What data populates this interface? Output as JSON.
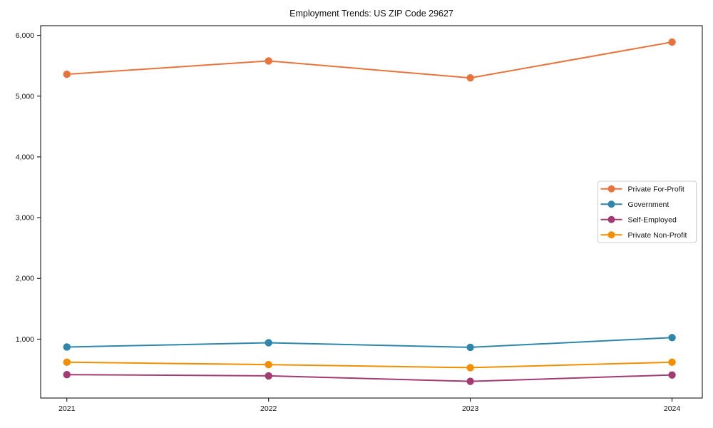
{
  "figure": {
    "background": "#ffffff"
  },
  "chart_data": {
    "type": "line",
    "title": "Employment Trends: US ZIP Code 29627",
    "xlabel": "",
    "ylabel": "",
    "x": [
      2021,
      2022,
      2023,
      2024
    ],
    "x_tick_labels": [
      "2021",
      "2022",
      "2023",
      "2024"
    ],
    "series": [
      {
        "name": "Private For-Profit",
        "color": "#E8743B",
        "values": [
          5360,
          5580,
          5300,
          5890
        ]
      },
      {
        "name": "Government",
        "color": "#2E86AB",
        "values": [
          870,
          940,
          865,
          1025
        ]
      },
      {
        "name": "Self-Employed",
        "color": "#A23B72",
        "values": [
          415,
          395,
          305,
          410
        ]
      },
      {
        "name": "Private Non-Profit",
        "color": "#F18F01",
        "values": [
          620,
          580,
          530,
          620
        ]
      }
    ],
    "yticks": [
      1000,
      2000,
      3000,
      4000,
      5000,
      6000
    ],
    "ytick_labels": [
      "1,000",
      "2,000",
      "3,000",
      "4,000",
      "5,000",
      "6,000"
    ],
    "ylim": [
      30,
      6160
    ],
    "xlim": [
      2020.87,
      2024.15
    ],
    "grid": false,
    "plot_border": true,
    "axis_color": "#000000",
    "legend": {
      "position": "center-right",
      "border_color": "#cccccc",
      "background": "#ffffff",
      "entries": [
        "Private For-Profit",
        "Government",
        "Self-Employed",
        "Private Non-Profit"
      ]
    }
  }
}
